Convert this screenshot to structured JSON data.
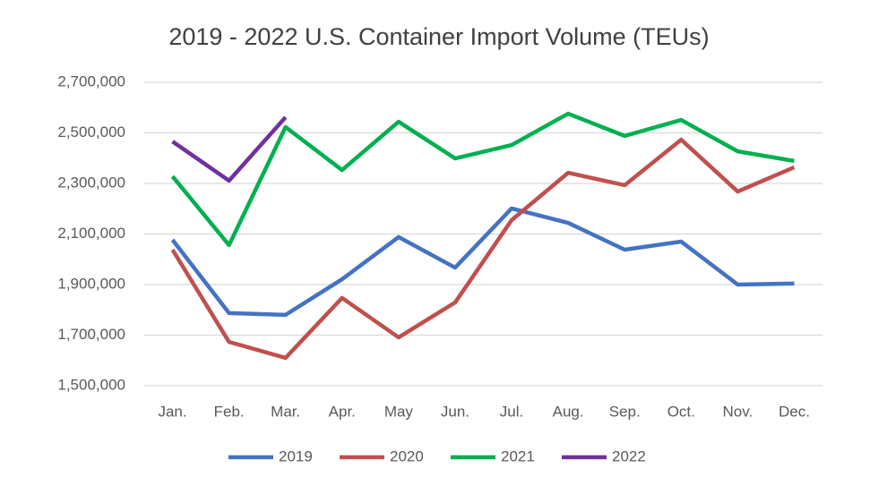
{
  "chart_data": {
    "type": "line",
    "title": "2019 - 2022 U.S. Container Import Volume (TEUs)",
    "categories": [
      "Jan.",
      "Feb.",
      "Mar.",
      "Apr.",
      "May",
      "Jun.",
      "Jul.",
      "Aug.",
      "Sep.",
      "Oct.",
      "Nov.",
      "Dec."
    ],
    "series": [
      {
        "name": "2019",
        "color": "#4472c4",
        "values": [
          2077000,
          1787000,
          1780000,
          1921000,
          2088000,
          1967000,
          2201000,
          2144000,
          2038000,
          2070000,
          1900000,
          1904000
        ]
      },
      {
        "name": "2020",
        "color": "#c0504d",
        "values": [
          2038000,
          1673000,
          1610000,
          1847000,
          1691000,
          1829000,
          2155000,
          2342000,
          2293000,
          2473000,
          2268000,
          2364000
        ]
      },
      {
        "name": "2021",
        "color": "#00b050",
        "values": [
          2328000,
          2056000,
          2523000,
          2353000,
          2544000,
          2399000,
          2452000,
          2576000,
          2488000,
          2551000,
          2427000,
          2389000
        ]
      },
      {
        "name": "2022",
        "color": "#7030a0",
        "values": [
          2466000,
          2311000,
          2562000,
          null,
          null,
          null,
          null,
          null,
          null,
          null,
          null,
          null
        ]
      }
    ],
    "ylim": [
      1500000,
      2700000
    ],
    "yticks": [
      {
        "value": 1500000,
        "label": "1,500,000"
      },
      {
        "value": 1700000,
        "label": "1,700,000"
      },
      {
        "value": 1900000,
        "label": "1,900,000"
      },
      {
        "value": 2100000,
        "label": "2,100,000"
      },
      {
        "value": 2300000,
        "label": "2,300,000"
      },
      {
        "value": 2500000,
        "label": "2,500,000"
      },
      {
        "value": 2700000,
        "label": "2,700,000"
      }
    ],
    "grid": true,
    "legend": "bottom"
  }
}
